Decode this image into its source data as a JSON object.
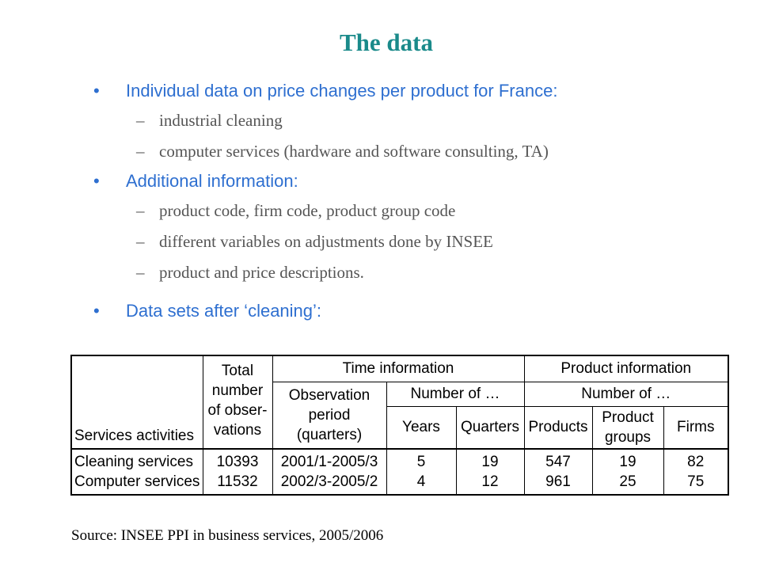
{
  "title": "The data",
  "bullets": [
    {
      "text": "Individual data on price changes per product for France:",
      "sub": [
        "industrial cleaning",
        "computer services (hardware and software consulting, TA)"
      ]
    },
    {
      "text": "Additional information:",
      "sub": [
        "product code, firm code, product group code",
        "different variables on adjustments done by INSEE",
        "product and price descriptions."
      ]
    },
    {
      "text": "Data sets after ‘cleaning’:",
      "sub": []
    }
  ],
  "bullet_symbol": "•",
  "dash_symbol": "–",
  "table": {
    "headers": {
      "services_activities": "Services activities",
      "total_obs": [
        "Total",
        "number",
        "of obser-",
        "vations"
      ],
      "time_information": "Time information",
      "product_information": "Product information",
      "observation_period": [
        "Observation",
        "period",
        "(quarters)"
      ],
      "number_of_time": "Number of …",
      "number_of_product": "Number of …",
      "years": "Years",
      "quarters": "Quarters",
      "products": "Products",
      "product_groups": [
        "Product",
        "groups"
      ],
      "firms": "Firms"
    },
    "rows": [
      {
        "activity": "Cleaning services",
        "total": "10393",
        "period": "2001/1-2005/3",
        "years": "5",
        "quarters": "19",
        "products": "547",
        "groups": "19",
        "firms": "82"
      },
      {
        "activity": "Computer services",
        "total": "11532",
        "period": "2002/3-2005/2",
        "years": "4",
        "quarters": "12",
        "products": "961",
        "groups": "25",
        "firms": "75"
      }
    ]
  },
  "source": "Source: INSEE PPI in business services, 2005/2006",
  "colors": {
    "title": "#1a8a8a",
    "bullet_l1": "#2e6fd0",
    "bullet_l2": "#555555"
  }
}
